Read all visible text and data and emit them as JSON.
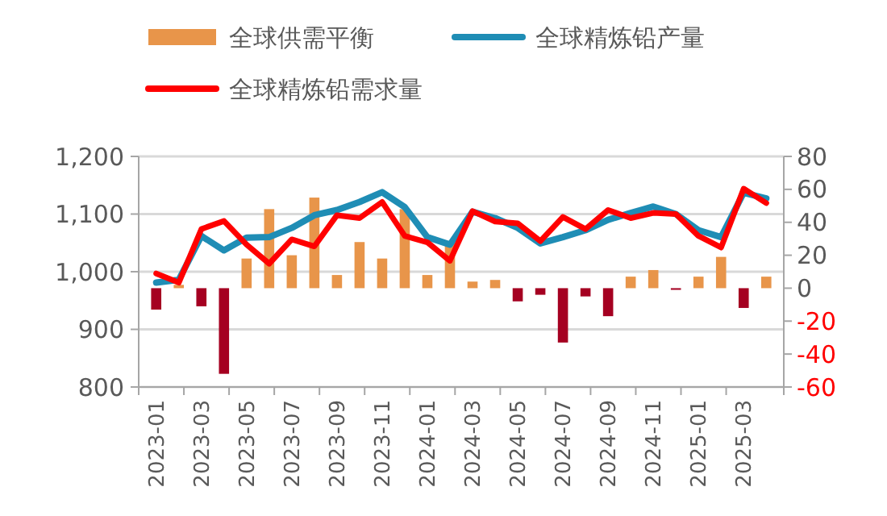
{
  "chart_data": {
    "type": "bar",
    "categories": [
      "2023-01",
      null,
      "2023-03",
      null,
      "2023-05",
      null,
      "2023-07",
      null,
      "2023-09",
      null,
      "2023-11",
      null,
      "2024-01",
      null,
      "2024-03",
      null,
      "2024-05",
      null,
      "2024-07",
      null,
      "2024-09",
      null,
      "2024-11",
      null,
      "2025-01",
      null,
      "2025-03",
      null
    ],
    "series": [
      {
        "name": "全球供需平衡",
        "axis": "y2",
        "color": "#e8954a",
        "colors": [
          "#a50021",
          "#e8954a",
          "#a50021",
          "#a50021",
          "#e8954a",
          "#e8954a",
          "#e8954a",
          "#e8954a",
          "#e8954a",
          "#e8954a",
          "#e8954a",
          "#e8954a",
          "#e8954a",
          "#e8954a",
          "#e8954a",
          "#e8954a",
          "#a50021",
          "#a50021",
          "#a50021",
          "#a50021",
          "#a50021",
          "#e8954a",
          "#e8954a",
          "#a50021",
          "#e8954a",
          "#e8954a",
          "#a50021",
          "#e8954a"
        ],
        "values": [
          -13,
          2,
          -11,
          -52,
          18,
          48,
          20,
          55,
          8,
          28,
          18,
          48,
          8,
          28,
          4,
          5,
          -8,
          -4,
          -33,
          -5,
          -17,
          7,
          11,
          -1,
          7,
          19,
          -12,
          7
        ]
      },
      {
        "name": "全球精炼铅产量",
        "type": "line",
        "color": "#1f8db5",
        "values": [
          981,
          986,
          1062,
          1037,
          1059,
          1060,
          1076,
          1098,
          1107,
          1121,
          1138,
          1112,
          1060,
          1047,
          1104,
          1093,
          1076,
          1049,
          1060,
          1072,
          1090,
          1102,
          1113,
          1100,
          1072,
          1060,
          1137,
          1127
        ]
      },
      {
        "name": "全球精炼铅需求量",
        "type": "line",
        "color": "#ff0000",
        "values": [
          997,
          981,
          1074,
          1088,
          1047,
          1014,
          1056,
          1044,
          1098,
          1093,
          1121,
          1062,
          1051,
          1019,
          1105,
          1087,
          1084,
          1053,
          1095,
          1074,
          1107,
          1093,
          1102,
          1100,
          1062,
          1042,
          1144,
          1119
        ]
      }
    ],
    "ylim": [
      800,
      1200
    ],
    "yticks": [
      {
        "value": 800,
        "label": "800"
      },
      {
        "value": 900,
        "label": "900"
      },
      {
        "value": 1000,
        "label": "1,000"
      },
      {
        "value": 1100,
        "label": "1,100"
      },
      {
        "value": 1200,
        "label": "1,200"
      }
    ],
    "y2lim": [
      -60,
      80
    ],
    "y2ticks": [
      -60,
      -40,
      -20,
      0,
      20,
      40,
      60,
      80
    ],
    "grid": "y",
    "legend": "top"
  }
}
